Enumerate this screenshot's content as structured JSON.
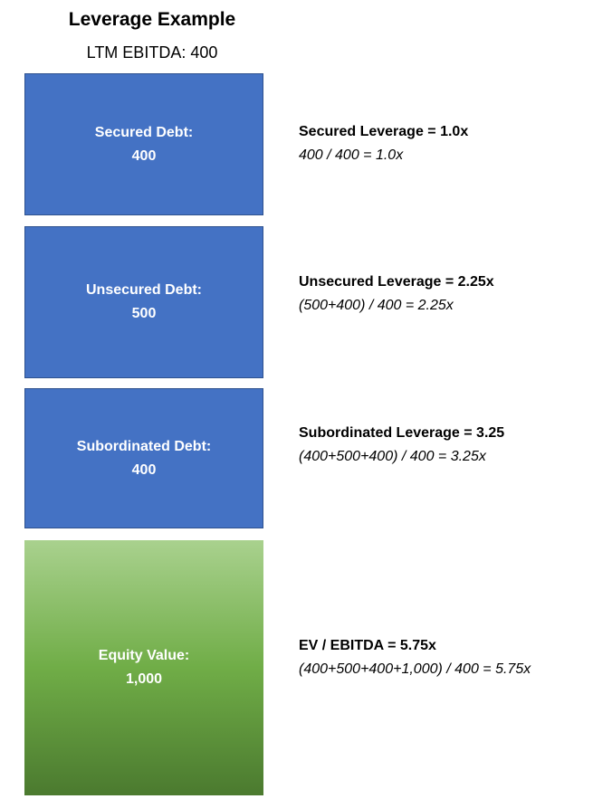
{
  "title": "Leverage Example",
  "subtitle": "LTM EBITDA: 400",
  "blocks": {
    "secured": {
      "label": "Secured Debt:",
      "value": "400"
    },
    "unsecured": {
      "label": "Unsecured Debt:",
      "value": "500"
    },
    "subordinated": {
      "label": "Subordinated Debt:",
      "value": "400"
    },
    "equity": {
      "label": "Equity Value:",
      "value": "1,000"
    }
  },
  "notes": {
    "secured": {
      "equation": "Secured Leverage = 1.0x",
      "calc": "400 / 400 = 1.0x"
    },
    "unsecured": {
      "equation": "Unsecured Leverage = 2.25x",
      "calc": "(500+400) / 400 = 2.25x"
    },
    "subordinated": {
      "equation": "Subordinated Leverage = 3.25",
      "calc": "(400+500+400) / 400 = 3.25x"
    },
    "ev": {
      "equation": "EV / EBITDA = 5.75x",
      "calc": "(400+500+400+1,000) / 400 = 5.75x"
    }
  },
  "colors": {
    "debt": "#4472c4",
    "debt_border": "#2f528f",
    "equity_top": "#a9d18e",
    "equity_bottom": "#4b7a2f"
  }
}
